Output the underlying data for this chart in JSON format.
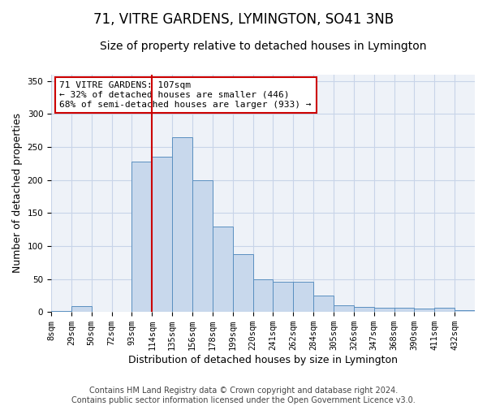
{
  "title": "71, VITRE GARDENS, LYMINGTON, SO41 3NB",
  "subtitle": "Size of property relative to detached houses in Lymington",
  "xlabel": "Distribution of detached houses by size in Lymington",
  "ylabel": "Number of detached properties",
  "bar_color": "#c8d8ec",
  "bar_edge_color": "#5a8fc0",
  "grid_color": "#c8d4e8",
  "background_color": "#eef2f8",
  "line_color": "#cc0000",
  "annotation_text": "71 VITRE GARDENS: 107sqm\n← 32% of detached houses are smaller (446)\n68% of semi-detached houses are larger (933) →",
  "bin_labels": [
    "8sqm",
    "29sqm",
    "50sqm",
    "72sqm",
    "93sqm",
    "114sqm",
    "135sqm",
    "156sqm",
    "178sqm",
    "199sqm",
    "220sqm",
    "241sqm",
    "262sqm",
    "284sqm",
    "305sqm",
    "326sqm",
    "347sqm",
    "368sqm",
    "390sqm",
    "411sqm",
    "432sqm"
  ],
  "counts": [
    2,
    9,
    0,
    0,
    228,
    235,
    265,
    200,
    130,
    87,
    50,
    46,
    46,
    25,
    10,
    8,
    6,
    6,
    5,
    7,
    3
  ],
  "property_line_x": 5.0,
  "ylim": [
    0,
    360
  ],
  "yticks": [
    0,
    50,
    100,
    150,
    200,
    250,
    300,
    350
  ],
  "footer_line1": "Contains HM Land Registry data © Crown copyright and database right 2024.",
  "footer_line2": "Contains public sector information licensed under the Open Government Licence v3.0.",
  "annotation_box_color": "white",
  "annotation_box_edge": "#cc0000",
  "title_fontsize": 12,
  "subtitle_fontsize": 10,
  "label_fontsize": 9,
  "tick_fontsize": 7.5,
  "footer_fontsize": 7,
  "annotation_fontsize": 8
}
